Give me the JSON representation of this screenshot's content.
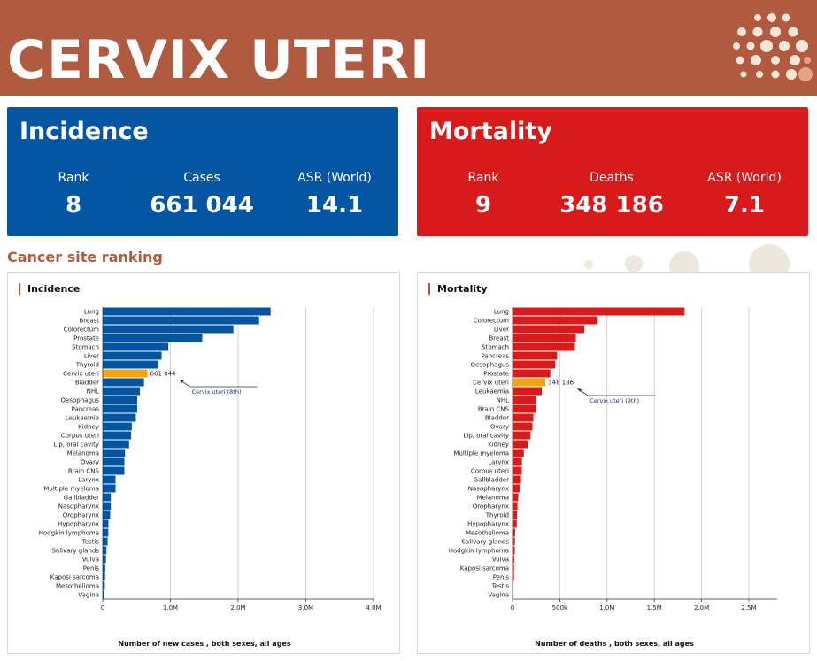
{
  "header": {
    "title": "CERVIX UTERI"
  },
  "colors": {
    "header": "#b05a3f",
    "incidence": "#0556a2",
    "mortality": "#d91a1a",
    "highlight": "#f6a40f"
  },
  "incidence": {
    "title": "Incidence",
    "rank_label": "Rank",
    "rank": "8",
    "cases_label": "Cases",
    "cases": "661 044",
    "asr_label": "ASR (World)",
    "asr": "14.1"
  },
  "mortality": {
    "title": "Mortality",
    "rank_label": "Rank",
    "rank": "9",
    "deaths_label": "Deaths",
    "deaths": "348 186",
    "asr_label": "ASR (World)",
    "asr": "7.1"
  },
  "section_title": "Cancer site ranking",
  "chart_data": [
    {
      "type": "bar",
      "orientation": "horizontal",
      "title": "Incidence",
      "xlabel": "Number of new cases , both sexes, all ages",
      "xlim": [
        0,
        4000000
      ],
      "xticks": [
        0,
        1000000,
        2000000,
        3000000,
        4000000
      ],
      "xtick_labels": [
        "0",
        "1.0M",
        "2.0M",
        "3.0M",
        "4.0M"
      ],
      "grid": true,
      "categories": [
        "Lung",
        "Breast",
        "Colorectum",
        "Prostate",
        "Stomach",
        "Liver",
        "Thyroid",
        "Cervix uteri",
        "Bladder",
        "NHL",
        "Oesophagus",
        "Pancreas",
        "Leukaemia",
        "Kidney",
        "Corpus uteri",
        "Lip, oral cavity",
        "Melanoma",
        "Ovary",
        "Brain CNS",
        "Larynx",
        "Multiple myeloma",
        "Gallbladder",
        "Nasopharynx",
        "Oropharynx",
        "Hypopharynx",
        "Hodgkin lymphoma",
        "Testis",
        "Salivary glands",
        "Vulva",
        "Penis",
        "Kaposi sarcoma",
        "Mesothelioma",
        "Vagina"
      ],
      "values": [
        2480000,
        2310000,
        1930000,
        1470000,
        970000,
        870000,
        820000,
        661044,
        610000,
        550000,
        510000,
        510000,
        490000,
        430000,
        420000,
        390000,
        330000,
        320000,
        320000,
        190000,
        190000,
        120000,
        120000,
        110000,
        85000,
        83000,
        73000,
        56000,
        48000,
        38000,
        35000,
        31000,
        18000
      ],
      "highlight_index": 7,
      "annotation_value": "661 044",
      "annotation_label": "Cervix uteri (8th)"
    },
    {
      "type": "bar",
      "orientation": "horizontal",
      "title": "Mortality",
      "xlabel": "Number of deaths , both sexes, all ages",
      "xlim": [
        0,
        2800000
      ],
      "xticks": [
        0,
        500000,
        1000000,
        1500000,
        2000000,
        2500000
      ],
      "xtick_labels": [
        "0",
        "500k",
        "1.0M",
        "1.5M",
        "2.0M",
        "2.5M"
      ],
      "grid": true,
      "categories": [
        "Lung",
        "Colorectum",
        "Liver",
        "Breast",
        "Stomach",
        "Pancreas",
        "Oesophagus",
        "Prostate",
        "Cervix uteri",
        "Leukaemia",
        "NHL",
        "Brain CNS",
        "Bladder",
        "Ovary",
        "Lip, oral cavity",
        "Kidney",
        "Multiple myeloma",
        "Larynx",
        "Corpus uteri",
        "Gallbladder",
        "Nasopharynx",
        "Melanoma",
        "Oropharynx",
        "Thyroid",
        "Hypopharynx",
        "Mesothelioma",
        "Salivary glands",
        "Hodgkin lymphoma",
        "Vulva",
        "Kaposi sarcoma",
        "Penis",
        "Testis",
        "Vagina"
      ],
      "values": [
        1820000,
        900000,
        760000,
        670000,
        660000,
        470000,
        450000,
        400000,
        348186,
        310000,
        250000,
        250000,
        220000,
        210000,
        190000,
        160000,
        120000,
        100000,
        98000,
        90000,
        75000,
        60000,
        52000,
        48000,
        45000,
        28000,
        25000,
        24000,
        18000,
        16000,
        15000,
        10000,
        8000
      ],
      "highlight_index": 8,
      "annotation_value": "348 186",
      "annotation_label": "Cervix uteri (9th)"
    }
  ]
}
